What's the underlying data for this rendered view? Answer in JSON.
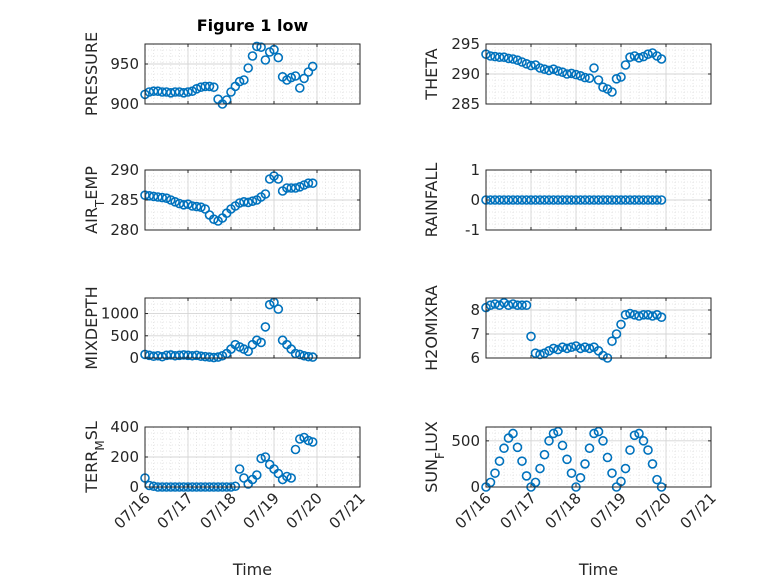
{
  "chart_data": [
    {
      "type": "scatter",
      "title": "Figure 1 low",
      "ylabel": "PRESSURE",
      "xlim": [
        "07/16",
        "07/21"
      ],
      "ylim": [
        900,
        975
      ],
      "yticks": [
        900,
        950
      ],
      "xticks": [
        "07/16",
        "07/17",
        "07/18",
        "07/19",
        "07/20",
        "07/21"
      ],
      "show_xticklabels": false,
      "grid": "major+minor",
      "x": [
        0.0,
        0.1,
        0.2,
        0.3,
        0.4,
        0.5,
        0.6,
        0.7,
        0.8,
        0.9,
        1.0,
        1.1,
        1.2,
        1.3,
        1.4,
        1.5,
        1.6,
        1.7,
        1.8,
        1.9,
        2.0,
        2.1,
        2.2,
        2.3,
        2.4,
        2.5,
        2.6,
        2.7,
        2.8,
        2.9,
        3.0,
        3.1,
        3.2,
        3.3,
        3.4,
        3.5,
        3.6,
        3.7,
        3.8,
        3.9
      ],
      "y": [
        912,
        915,
        916,
        916,
        915,
        915,
        914,
        915,
        915,
        914,
        915,
        916,
        919,
        921,
        922,
        922,
        921,
        906,
        900,
        905,
        915,
        922,
        928,
        930,
        945,
        960,
        972,
        971,
        955,
        965,
        968,
        958,
        934,
        930,
        933,
        935,
        920,
        932,
        940,
        947
      ]
    },
    {
      "type": "scatter",
      "ylabel": "THETA",
      "xlim": [
        "07/16",
        "07/21"
      ],
      "ylim": [
        285,
        295
      ],
      "yticks": [
        285,
        290,
        295
      ],
      "xticks": [
        "07/16",
        "07/17",
        "07/18",
        "07/19",
        "07/20",
        "07/21"
      ],
      "show_xticklabels": false,
      "grid": "major+minor",
      "x": [
        0.0,
        0.1,
        0.2,
        0.3,
        0.4,
        0.5,
        0.6,
        0.7,
        0.8,
        0.9,
        1.0,
        1.1,
        1.2,
        1.3,
        1.4,
        1.5,
        1.6,
        1.7,
        1.8,
        1.9,
        2.0,
        2.1,
        2.2,
        2.3,
        2.4,
        2.5,
        2.6,
        2.7,
        2.8,
        2.9,
        3.0,
        3.1,
        3.2,
        3.3,
        3.4,
        3.5,
        3.6,
        3.7,
        3.8,
        3.9
      ],
      "y": [
        293.3,
        293.0,
        292.9,
        292.8,
        292.8,
        292.6,
        292.5,
        292.3,
        292.0,
        291.7,
        291.4,
        291.5,
        291.0,
        290.8,
        290.6,
        290.8,
        290.5,
        290.3,
        290.0,
        290.1,
        289.9,
        289.7,
        289.4,
        289.3,
        291.0,
        289.0,
        287.8,
        287.5,
        287.0,
        289.2,
        289.5,
        291.5,
        292.8,
        293.0,
        292.7,
        292.9,
        293.3,
        293.5,
        293.0,
        292.5
      ]
    },
    {
      "type": "scatter",
      "ylabel": "AIR_TEMP",
      "xlim": [
        "07/16",
        "07/21"
      ],
      "ylim": [
        280,
        290
      ],
      "yticks": [
        280,
        285,
        290
      ],
      "xticks": [
        "07/16",
        "07/17",
        "07/18",
        "07/19",
        "07/20",
        "07/21"
      ],
      "show_xticklabels": false,
      "grid": "major+minor",
      "x": [
        0.0,
        0.1,
        0.2,
        0.3,
        0.4,
        0.5,
        0.6,
        0.7,
        0.8,
        0.9,
        1.0,
        1.1,
        1.2,
        1.3,
        1.4,
        1.5,
        1.6,
        1.7,
        1.8,
        1.9,
        2.0,
        2.1,
        2.2,
        2.3,
        2.4,
        2.5,
        2.6,
        2.7,
        2.8,
        2.9,
        3.0,
        3.1,
        3.2,
        3.3,
        3.4,
        3.5,
        3.6,
        3.7,
        3.8,
        3.9
      ],
      "y": [
        285.8,
        285.7,
        285.6,
        285.5,
        285.4,
        285.3,
        285.0,
        284.7,
        284.4,
        284.2,
        284.3,
        284.0,
        283.9,
        283.8,
        283.5,
        282.5,
        281.8,
        281.5,
        282.0,
        282.8,
        283.5,
        284.0,
        284.5,
        284.7,
        284.6,
        284.8,
        285.0,
        285.5,
        286.0,
        288.5,
        289.0,
        288.5,
        286.5,
        287.0,
        287.0,
        287.0,
        287.2,
        287.5,
        287.8,
        287.8
      ]
    },
    {
      "type": "scatter",
      "ylabel": "RAINFALL",
      "xlim": [
        "07/16",
        "07/21"
      ],
      "ylim": [
        -1,
        1
      ],
      "yticks": [
        -1,
        0,
        1
      ],
      "xticks": [
        "07/16",
        "07/17",
        "07/18",
        "07/19",
        "07/20",
        "07/21"
      ],
      "show_xticklabels": false,
      "grid": "major+minor",
      "x": [
        0.0,
        0.1,
        0.2,
        0.3,
        0.4,
        0.5,
        0.6,
        0.7,
        0.8,
        0.9,
        1.0,
        1.1,
        1.2,
        1.3,
        1.4,
        1.5,
        1.6,
        1.7,
        1.8,
        1.9,
        2.0,
        2.1,
        2.2,
        2.3,
        2.4,
        2.5,
        2.6,
        2.7,
        2.8,
        2.9,
        3.0,
        3.1,
        3.2,
        3.3,
        3.4,
        3.5,
        3.6,
        3.7,
        3.8,
        3.9
      ],
      "y": [
        0,
        0,
        0,
        0,
        0,
        0,
        0,
        0,
        0,
        0,
        0,
        0,
        0,
        0,
        0,
        0,
        0,
        0,
        0,
        0,
        0,
        0,
        0,
        0,
        0,
        0,
        0,
        0,
        0,
        0,
        0,
        0,
        0,
        0,
        0,
        0,
        0,
        0,
        0,
        0
      ]
    },
    {
      "type": "scatter",
      "ylabel": "MIXDEPTH",
      "xlim": [
        "07/16",
        "07/21"
      ],
      "ylim": [
        0,
        1350
      ],
      "yticks": [
        0,
        500,
        1000
      ],
      "xticks": [
        "07/16",
        "07/17",
        "07/18",
        "07/19",
        "07/20",
        "07/21"
      ],
      "show_xticklabels": false,
      "grid": "major+minor",
      "x": [
        0.0,
        0.1,
        0.2,
        0.3,
        0.4,
        0.5,
        0.6,
        0.7,
        0.8,
        0.9,
        1.0,
        1.1,
        1.2,
        1.3,
        1.4,
        1.5,
        1.6,
        1.7,
        1.8,
        1.9,
        2.0,
        2.1,
        2.2,
        2.3,
        2.4,
        2.5,
        2.6,
        2.7,
        2.8,
        2.9,
        3.0,
        3.1,
        3.2,
        3.3,
        3.4,
        3.5,
        3.6,
        3.7,
        3.8,
        3.9
      ],
      "y": [
        80,
        60,
        40,
        50,
        30,
        60,
        70,
        50,
        60,
        70,
        60,
        50,
        60,
        40,
        30,
        20,
        10,
        20,
        50,
        100,
        200,
        300,
        250,
        200,
        150,
        300,
        400,
        350,
        700,
        1200,
        1250,
        1100,
        400,
        300,
        200,
        100,
        80,
        50,
        30,
        20
      ]
    },
    {
      "type": "scatter",
      "ylabel": "H2OMIXRA",
      "xlim": [
        "07/16",
        "07/21"
      ],
      "ylim": [
        6,
        8.5
      ],
      "yticks": [
        6,
        7,
        8
      ],
      "xticks": [
        "07/16",
        "07/17",
        "07/18",
        "07/19",
        "07/20",
        "07/21"
      ],
      "show_xticklabels": false,
      "grid": "major+minor",
      "x": [
        0.0,
        0.1,
        0.2,
        0.3,
        0.4,
        0.5,
        0.6,
        0.7,
        0.8,
        0.9,
        1.0,
        1.1,
        1.2,
        1.3,
        1.4,
        1.5,
        1.6,
        1.7,
        1.8,
        1.9,
        2.0,
        2.1,
        2.2,
        2.3,
        2.4,
        2.5,
        2.6,
        2.7,
        2.8,
        2.9,
        3.0,
        3.1,
        3.2,
        3.3,
        3.4,
        3.5,
        3.6,
        3.7,
        3.8,
        3.9
      ],
      "y": [
        8.1,
        8.2,
        8.25,
        8.2,
        8.3,
        8.2,
        8.25,
        8.2,
        8.2,
        8.2,
        6.9,
        6.2,
        6.15,
        6.2,
        6.3,
        6.4,
        6.35,
        6.45,
        6.4,
        6.45,
        6.5,
        6.4,
        6.45,
        6.4,
        6.45,
        6.3,
        6.1,
        6.0,
        6.7,
        7.0,
        7.4,
        7.8,
        7.85,
        7.8,
        7.75,
        7.8,
        7.8,
        7.75,
        7.8,
        7.7
      ]
    },
    {
      "type": "scatter",
      "ylabel": "TERR_MSL",
      "xlim": [
        "07/16",
        "07/21"
      ],
      "ylim": [
        0,
        400
      ],
      "yticks": [
        0,
        200,
        400
      ],
      "xticks": [
        "07/16",
        "07/17",
        "07/18",
        "07/19",
        "07/20",
        "07/21"
      ],
      "show_xticklabels": true,
      "xlabel": "Time",
      "grid": "major+minor",
      "x": [
        0.0,
        0.1,
        0.2,
        0.3,
        0.4,
        0.5,
        0.6,
        0.7,
        0.8,
        0.9,
        1.0,
        1.1,
        1.2,
        1.3,
        1.4,
        1.5,
        1.6,
        1.7,
        1.8,
        1.9,
        2.0,
        2.1,
        2.2,
        2.3,
        2.4,
        2.5,
        2.6,
        2.7,
        2.8,
        2.9,
        3.0,
        3.1,
        3.2,
        3.3,
        3.4,
        3.5,
        3.6,
        3.7,
        3.8,
        3.9
      ],
      "y": [
        60,
        10,
        5,
        0,
        0,
        0,
        0,
        0,
        0,
        0,
        0,
        0,
        0,
        0,
        0,
        0,
        0,
        0,
        0,
        0,
        0,
        5,
        120,
        60,
        20,
        50,
        80,
        190,
        200,
        150,
        120,
        90,
        50,
        70,
        60,
        250,
        320,
        330,
        310,
        300
      ]
    },
    {
      "type": "scatter",
      "ylabel": "SUN_FLUX",
      "xlim": [
        "07/16",
        "07/21"
      ],
      "ylim": [
        0,
        650
      ],
      "yticks": [
        0,
        500
      ],
      "xticks": [
        "07/16",
        "07/17",
        "07/18",
        "07/19",
        "07/20",
        "07/21"
      ],
      "show_xticklabels": true,
      "xlabel": "Time",
      "grid": "major+minor",
      "x": [
        0.0,
        0.1,
        0.2,
        0.3,
        0.4,
        0.5,
        0.6,
        0.7,
        0.8,
        0.9,
        1.0,
        1.1,
        1.2,
        1.3,
        1.4,
        1.5,
        1.6,
        1.7,
        1.8,
        1.9,
        2.0,
        2.1,
        2.2,
        2.3,
        2.4,
        2.5,
        2.6,
        2.7,
        2.8,
        2.9,
        3.0,
        3.1,
        3.2,
        3.3,
        3.4,
        3.5,
        3.6,
        3.7,
        3.8,
        3.9
      ],
      "y": [
        0,
        50,
        150,
        280,
        420,
        530,
        580,
        430,
        280,
        120,
        0,
        50,
        200,
        350,
        500,
        580,
        600,
        450,
        300,
        150,
        0,
        100,
        250,
        420,
        580,
        600,
        500,
        320,
        150,
        0,
        60,
        200,
        400,
        560,
        580,
        500,
        400,
        250,
        80,
        0
      ]
    }
  ],
  "colors": {
    "marker": "#0072BD",
    "axis": "#262626",
    "grid": "#dfdfdf"
  }
}
